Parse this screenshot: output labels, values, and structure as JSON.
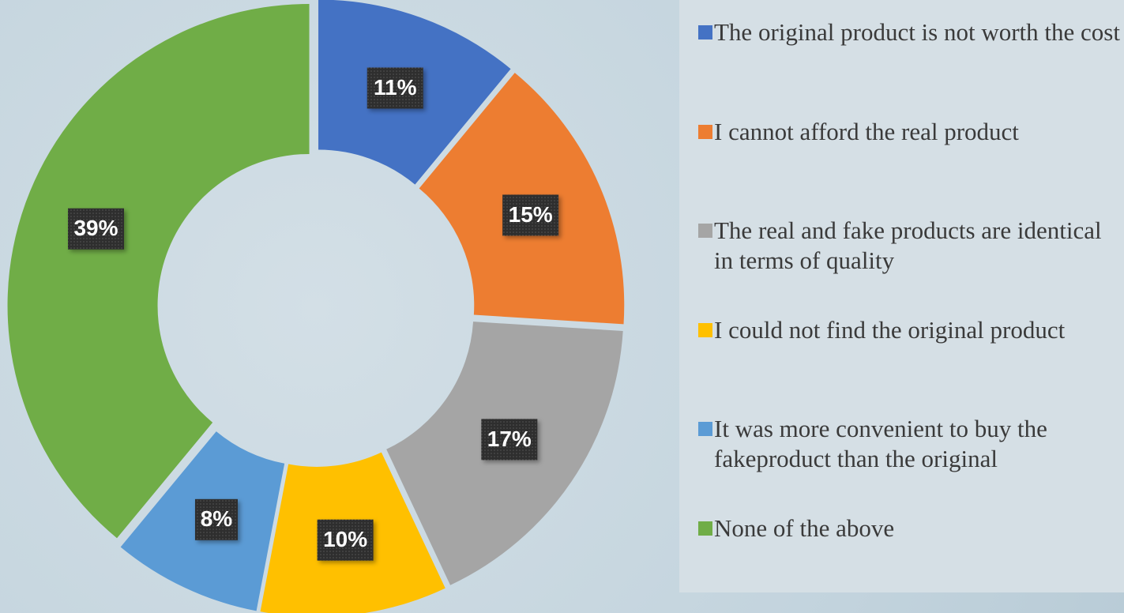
{
  "chart_data": {
    "type": "donut",
    "categories": [
      "The original product is not worth the cost",
      "I cannot afford the real product",
      "The real and fake products are identical in terms of quality",
      "I could not find the original product",
      "It was more convenient to buy the fakeproduct than the original",
      "None of the above"
    ],
    "values": [
      11,
      15,
      17,
      10,
      8,
      39
    ],
    "value_labels": [
      "11%",
      "15%",
      "17%",
      "10%",
      "8%",
      "39%"
    ],
    "colors": [
      "#4472c4",
      "#ed7d31",
      "#a5a5a5",
      "#ffc000",
      "#5b9bd5",
      "#70ad47"
    ],
    "legend": "right"
  }
}
